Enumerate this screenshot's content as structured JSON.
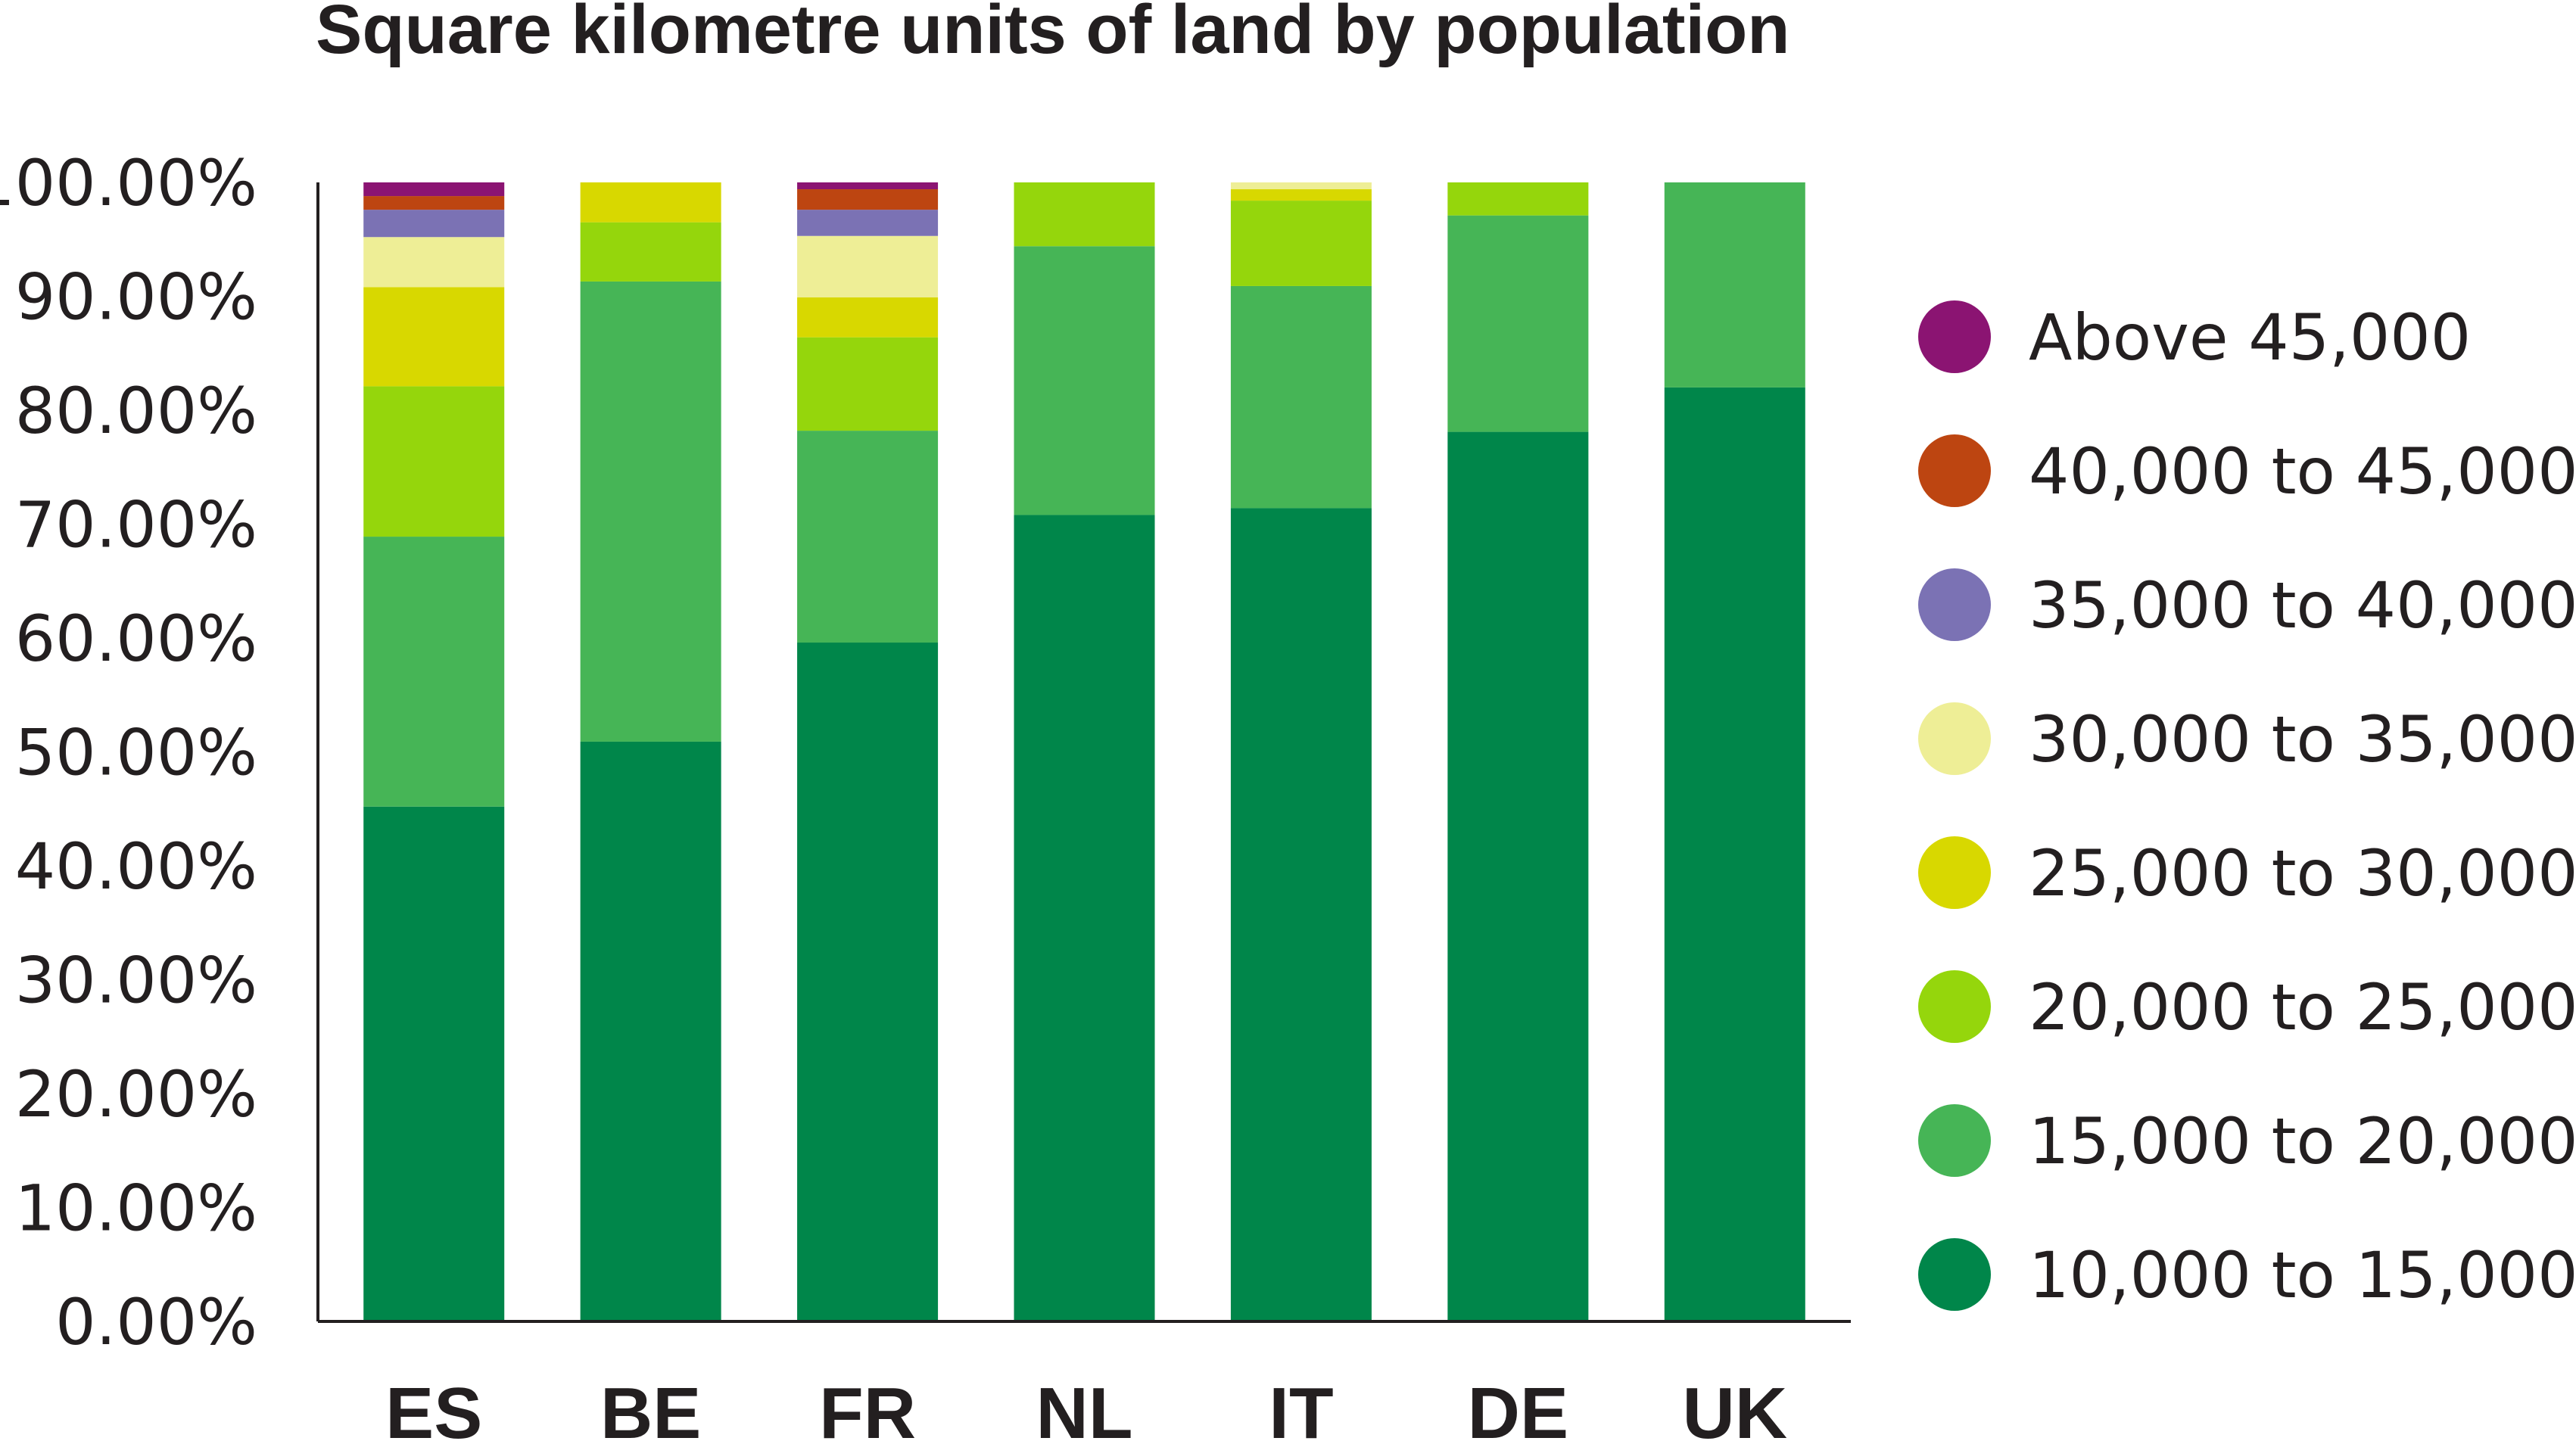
{
  "chart_data": {
    "type": "bar",
    "stacked": true,
    "title": "Square kilometre units of land by population",
    "xlabel": "",
    "ylabel": "",
    "ylim": [
      0,
      100
    ],
    "y_tick_labels": [
      "0.00%",
      "10.00%",
      "20.00%",
      "30.00%",
      "40.00%",
      "50.00%",
      "60.00%",
      "70.00%",
      "80.00%",
      "90.00%",
      "100.00%"
    ],
    "y_tick_values": [
      0,
      10,
      20,
      30,
      40,
      50,
      60,
      70,
      80,
      90,
      100
    ],
    "categories": [
      "ES",
      "BE",
      "FR",
      "NL",
      "IT",
      "DE",
      "UK"
    ],
    "grid": false,
    "legend_position": "right",
    "series": [
      {
        "name": "10,000 to 15,000",
        "color": "#00864a",
        "values": [
          45.2,
          50.9,
          59.6,
          70.8,
          71.4,
          78.1,
          82.0
        ]
      },
      {
        "name": "15,000 to 20,000",
        "color": "#46b556",
        "values": [
          23.7,
          40.4,
          18.6,
          23.6,
          19.5,
          19.0,
          18.0
        ]
      },
      {
        "name": "20,000 to 25,000",
        "color": "#95d60c",
        "values": [
          13.2,
          5.2,
          8.2,
          5.6,
          7.5,
          2.9,
          0
        ]
      },
      {
        "name": "25,000 to 30,000",
        "color": "#d8d800",
        "values": [
          8.7,
          3.5,
          3.5,
          0,
          1.0,
          0,
          0
        ]
      },
      {
        "name": "30,000 to 35,000",
        "color": "#eeee96",
        "values": [
          4.4,
          0,
          5.4,
          0,
          0.6,
          0,
          0
        ]
      },
      {
        "name": "35,000 to 40,000",
        "color": "#7b72b4",
        "values": [
          2.4,
          0,
          2.3,
          0,
          0,
          0,
          0
        ]
      },
      {
        "name": "40,000 to 45,000",
        "color": "#bd4511",
        "values": [
          1.2,
          0,
          1.8,
          0,
          0,
          0,
          0
        ]
      },
      {
        "name": "Above 45,000",
        "color": "#8b1472",
        "values": [
          1.2,
          0,
          0.6,
          0,
          0,
          0,
          0
        ]
      }
    ],
    "legend_order": [
      "Above 45,000",
      "40,000 to 45,000",
      "35,000 to 40,000",
      "30,000 to 35,000",
      "25,000 to 30,000",
      "20,000 to 25,000",
      "15,000 to 20,000",
      "10,000 to 15,000"
    ]
  }
}
